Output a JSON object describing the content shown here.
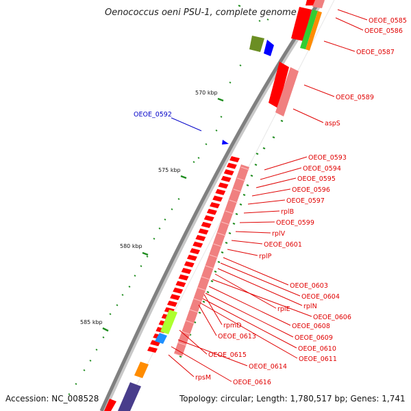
{
  "title": "Oenococcus oeni PSU-1, complete genome",
  "footer": {
    "accession": "Accession: NC_008528",
    "summary": "Topology: circular; Length: 1,780,517 bp; Genes: 1,741"
  },
  "kbp_ticks": [
    "570 kbp",
    "575 kbp",
    "580 kbp",
    "585 kbp"
  ],
  "gene_labels": [
    {
      "name": "OEOE_0585",
      "color": "#e00000"
    },
    {
      "name": "OEOE_0586",
      "color": "#e00000"
    },
    {
      "name": "OEOE_0587",
      "color": "#e00000"
    },
    {
      "name": "OEOE_0589",
      "color": "#e00000"
    },
    {
      "name": "aspS",
      "color": "#e00000"
    },
    {
      "name": "OEOE_0592",
      "color": "#0000c8"
    },
    {
      "name": "OEOE_0593",
      "color": "#e00000"
    },
    {
      "name": "OEOE_0594",
      "color": "#e00000"
    },
    {
      "name": "OEOE_0595",
      "color": "#e00000"
    },
    {
      "name": "OEOE_0596",
      "color": "#e00000"
    },
    {
      "name": "OEOE_0597",
      "color": "#e00000"
    },
    {
      "name": "rplB",
      "color": "#e00000"
    },
    {
      "name": "OEOE_0599",
      "color": "#e00000"
    },
    {
      "name": "rplV",
      "color": "#e00000"
    },
    {
      "name": "OEOE_0601",
      "color": "#e00000"
    },
    {
      "name": "rplP",
      "color": "#e00000"
    },
    {
      "name": "OEOE_0603",
      "color": "#e00000"
    },
    {
      "name": "OEOE_0604",
      "color": "#e00000"
    },
    {
      "name": "rplN",
      "color": "#e00000"
    },
    {
      "name": "rplE",
      "color": "#e00000"
    },
    {
      "name": "OEOE_0606",
      "color": "#e00000"
    },
    {
      "name": "OEOE_0608",
      "color": "#e00000"
    },
    {
      "name": "rpmD",
      "color": "#e00000"
    },
    {
      "name": "OEOE_0609",
      "color": "#e00000"
    },
    {
      "name": "OEOE_0613",
      "color": "#e00000"
    },
    {
      "name": "OEOE_0610",
      "color": "#e00000"
    },
    {
      "name": "OEOE_0611",
      "color": "#e00000"
    },
    {
      "name": "OEOE_0615",
      "color": "#e00000"
    },
    {
      "name": "OEOE_0614",
      "color": "#e00000"
    },
    {
      "name": "rpsM",
      "color": "#e00000"
    },
    {
      "name": "OEOE_0616",
      "color": "#e00000"
    }
  ],
  "colors": {
    "cds_red": "#ff0000",
    "rna_pink": "#f08080",
    "backbone": "#808080",
    "tick_green": "#1e8c1e",
    "feature_blue": "#0000ff",
    "feature_olive": "#6b8e23",
    "feature_green": "#32cd32",
    "feature_orange": "#ff8c00",
    "feature_lime": "#adff2f",
    "feature_cyan": "#1e90ff",
    "feature_slate": "#483d8b"
  }
}
